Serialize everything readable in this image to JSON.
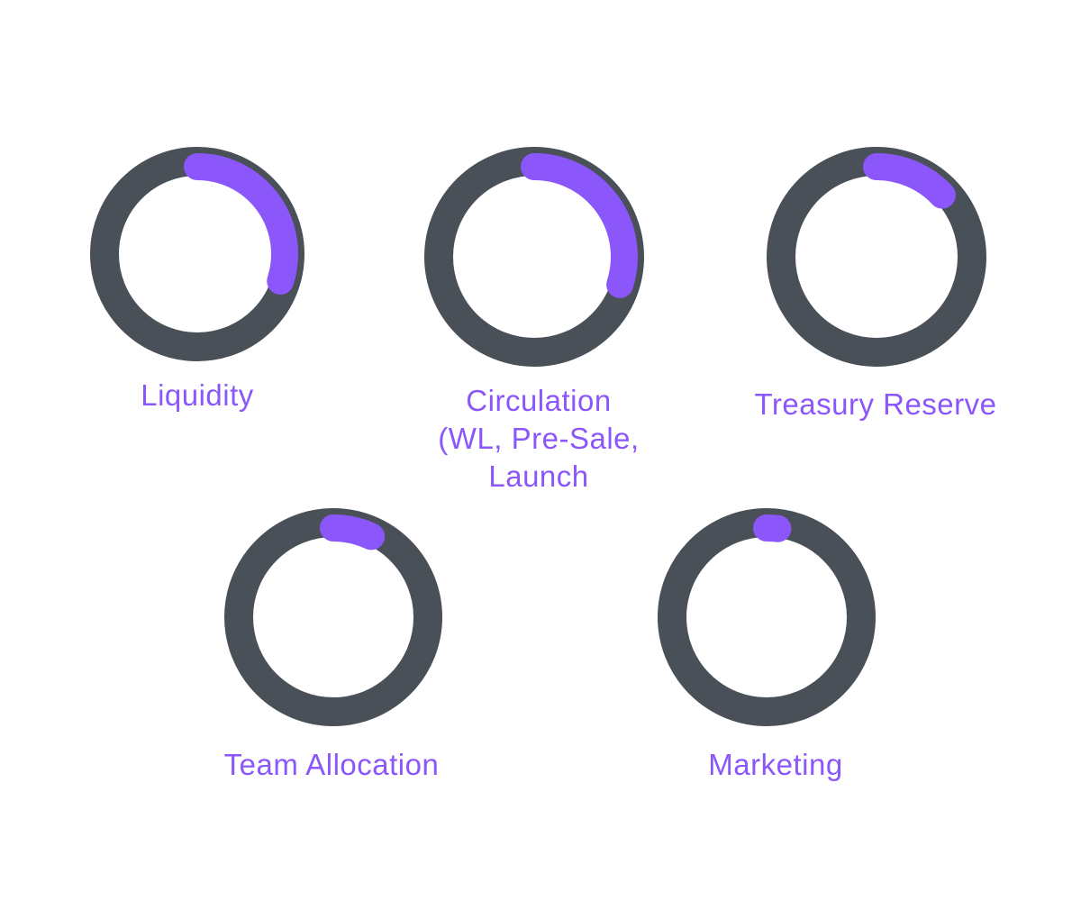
{
  "colors": {
    "track": "#4a5058",
    "progress": "#8b57fb",
    "label": "#8b57fb",
    "background": "#ffffff"
  },
  "chart_data": {
    "type": "progress-ring",
    "title": "",
    "items": [
      {
        "label_lines": [
          "Liquidity"
        ],
        "fraction": 0.3
      },
      {
        "label_lines": [
          "Circulation",
          "(WL, Pre-Sale,",
          "Launch"
        ],
        "fraction": 0.3
      },
      {
        "label_lines": [
          "Treasury Reserve"
        ],
        "fraction": 0.13
      },
      {
        "label_lines": [
          "Team Allocation"
        ],
        "fraction": 0.07
      },
      {
        "label_lines": [
          "Marketing"
        ],
        "fraction": 0.02
      }
    ]
  }
}
